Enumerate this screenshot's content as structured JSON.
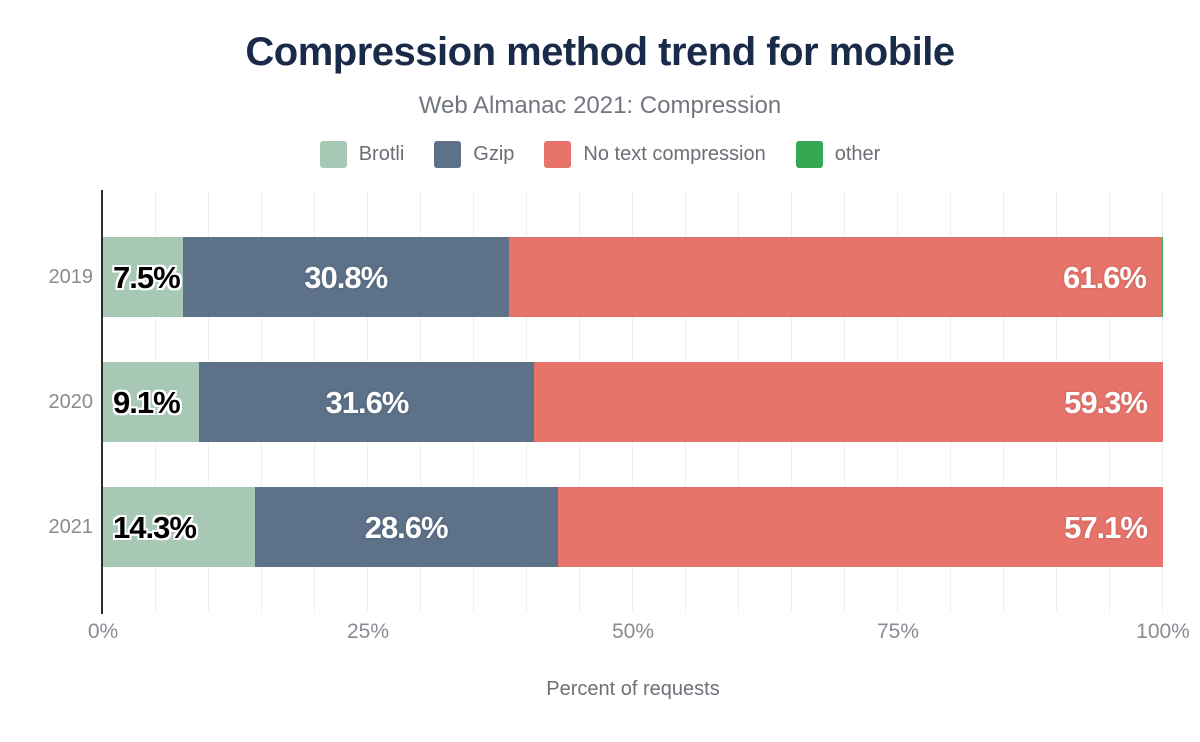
{
  "header": {
    "title": "Compression method trend for mobile",
    "subtitle": "Web Almanac 2021: Compression"
  },
  "legend": {
    "items": [
      {
        "label": "Brotli",
        "color": "#a8c8b6"
      },
      {
        "label": "Gzip",
        "color": "#5d7189"
      },
      {
        "label": "No text compression",
        "color": "#e7746b"
      },
      {
        "label": "other",
        "color": "#34a853"
      }
    ]
  },
  "axis": {
    "ticks": [
      {
        "label": "0%",
        "value": 0
      },
      {
        "label": "25%",
        "value": 25
      },
      {
        "label": "50%",
        "value": 50
      },
      {
        "label": "75%",
        "value": 75
      },
      {
        "label": "100%",
        "value": 100
      }
    ],
    "xlabel": "Percent of requests"
  },
  "rows": [
    {
      "year": "2019",
      "labels": [
        "7.5%",
        "30.8%",
        "61.6%"
      ]
    },
    {
      "year": "2020",
      "labels": [
        "9.1%",
        "31.6%",
        "59.3%"
      ]
    },
    {
      "year": "2021",
      "labels": [
        "14.3%",
        "28.6%",
        "57.1%"
      ]
    }
  ],
  "chart_data": {
    "type": "bar",
    "stacked": true,
    "orientation": "horizontal",
    "title": "Compression method trend for mobile",
    "subtitle": "Web Almanac 2021: Compression",
    "categories": [
      "2019",
      "2020",
      "2021"
    ],
    "series": [
      {
        "name": "Brotli",
        "color": "#a8c8b6",
        "values": [
          7.5,
          9.1,
          14.3
        ]
      },
      {
        "name": "Gzip",
        "color": "#5d7189",
        "values": [
          30.8,
          31.6,
          28.6
        ]
      },
      {
        "name": "No text compression",
        "color": "#e7746b",
        "values": [
          61.6,
          59.3,
          57.1
        ]
      },
      {
        "name": "other",
        "color": "#34a853",
        "values": [
          0.1,
          0.0,
          0.0
        ]
      }
    ],
    "xlabel": "Percent of requests",
    "ylabel": "",
    "xlim": [
      0,
      100
    ],
    "grid": true,
    "grid_interval_pct": 5,
    "legend_position": "top",
    "data_label_colors": {
      "Brotli": "black-with-white-outline",
      "Gzip": "white",
      "No text compression": "white"
    }
  }
}
